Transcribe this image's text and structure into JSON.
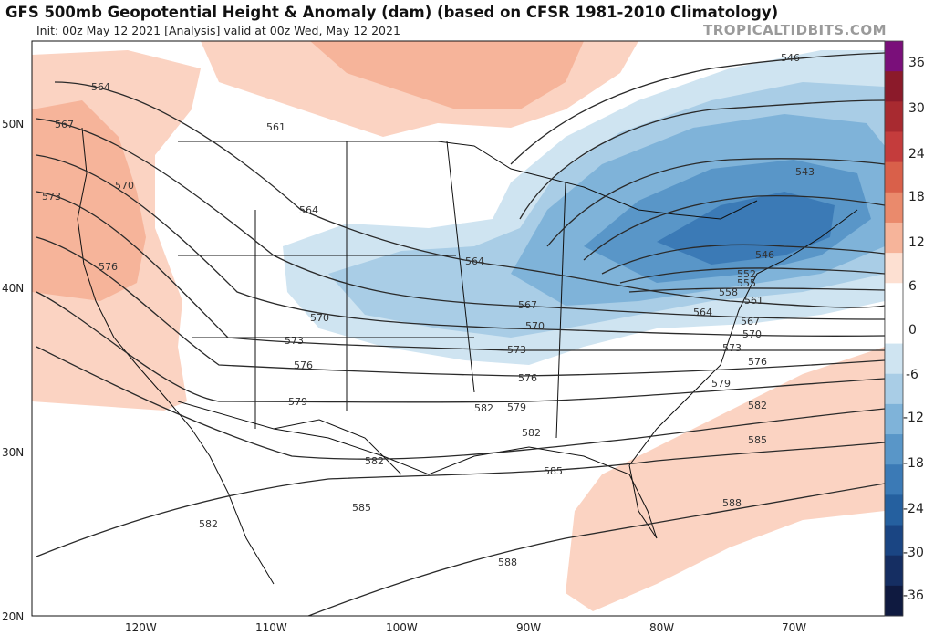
{
  "header": {
    "title": "GFS 500mb Geopotential Height & Anomaly (dam) (based on CFSR 1981-2010 Climatology)",
    "subtitle": "Init: 00z May 12 2021   [Analysis]   valid at 00z Wed, May 12 2021",
    "watermark": "TROPICALTIDBITS.COM"
  },
  "axes": {
    "lat_labels": [
      "50N",
      "40N",
      "30N",
      "20N"
    ],
    "lon_labels": [
      "120W",
      "110W",
      "100W",
      "90W",
      "80W",
      "70W"
    ]
  },
  "colorbar": {
    "labels": [
      "36",
      "30",
      "24",
      "18",
      "12",
      "6",
      "0",
      "-6",
      "-12",
      "-18",
      "-24",
      "-30",
      "-36"
    ],
    "colors": [
      "#7a0f7a",
      "#8b1a2a",
      "#a82a30",
      "#c43c3c",
      "#d9604a",
      "#ea8a6c",
      "#f6b49a",
      "#fde0d2",
      "#ffffff",
      "#ffffff",
      "#cfe4f1",
      "#a9cde6",
      "#7fb3d9",
      "#5996c8",
      "#3b7ab6",
      "#25609f",
      "#1a4583",
      "#152e62",
      "#0f1a40"
    ]
  },
  "contour_labels": {
    "west": [
      "564",
      "561",
      "567",
      "573",
      "570",
      "576",
      "564"
    ],
    "central": [
      "570",
      "573",
      "576",
      "579",
      "564",
      "567",
      "570",
      "573",
      "576",
      "579",
      "582"
    ],
    "east": [
      "546",
      "543",
      "546",
      "552",
      "555",
      "558",
      "561",
      "564",
      "567",
      "570",
      "573",
      "576",
      "579",
      "582",
      "585",
      "588"
    ],
    "south": [
      "582",
      "582",
      "585",
      "585",
      "588",
      "582"
    ]
  }
}
